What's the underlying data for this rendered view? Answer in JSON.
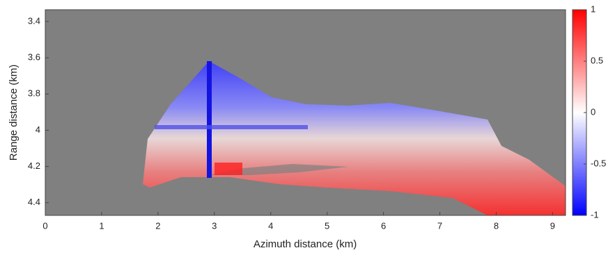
{
  "chart_data": {
    "type": "heatmap",
    "x_label": "Azimuth distance (km)",
    "y_label": "Range distance (km)",
    "xlim": [
      0,
      9.23
    ],
    "xticks": [
      0,
      1,
      2,
      3,
      4,
      5,
      6,
      7,
      8,
      9
    ],
    "ylim": [
      3.335,
      4.47
    ],
    "yticks": [
      3.4,
      3.6,
      3.8,
      4,
      4.2,
      4.4
    ],
    "y_reversed": true,
    "background_color": "#808080",
    "colormap": [
      "#0000ff",
      "#ffffff",
      "#ff0000"
    ],
    "clim": [
      -1,
      1
    ],
    "colorbar_ticks": [
      1,
      0.5,
      0,
      -0.5,
      -1
    ]
  }
}
